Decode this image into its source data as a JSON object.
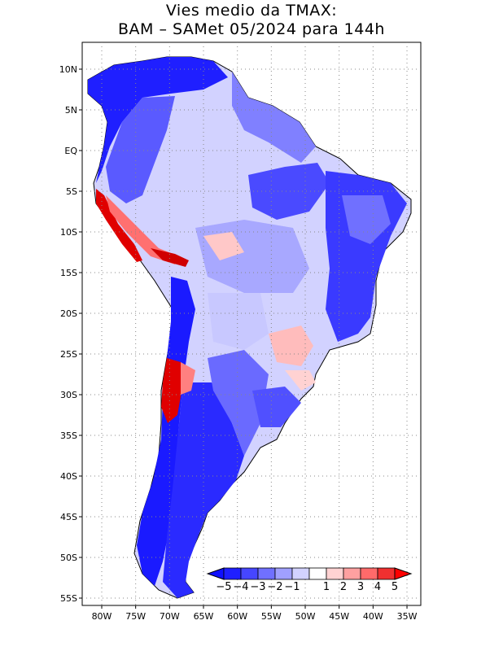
{
  "title": {
    "line1": "Vies medio da TMAX:",
    "line2": "BAM – SAMet 05/2024  para 144h"
  },
  "map": {
    "region": "South America",
    "lat_range": [
      -56,
      13
    ],
    "lon_range": [
      -84,
      -35
    ],
    "lat_ticks": [
      "10N",
      "5N",
      "EQ",
      "5S",
      "10S",
      "15S",
      "20S",
      "25S",
      "30S",
      "35S",
      "40S",
      "45S",
      "50S",
      "55S"
    ],
    "lon_ticks": [
      "80W",
      "75W",
      "70W",
      "65W",
      "60W",
      "55W",
      "50W",
      "45W",
      "40W",
      "35W"
    ],
    "grid": "dotted"
  },
  "colorbar": {
    "labels": [
      "−5",
      "−4",
      "−3",
      "−2",
      "−1",
      "1",
      "2",
      "3",
      "4",
      "5"
    ],
    "colors": [
      "#1f1fff",
      "#4646ff",
      "#7070ff",
      "#a0a0ff",
      "#d2d2ff",
      "#ffffff",
      "#ffd2d2",
      "#ffa0a0",
      "#ff6a6a",
      "#f03030",
      "#e00000"
    ],
    "ends": [
      "#1010ff",
      "#ff0000"
    ]
  },
  "colors": {
    "deep_blue": "#1a1aff",
    "mid_blue": "#5a5aff",
    "light_blue": "#a0a0ff",
    "pale_blue": "#d2d2ff",
    "pink": "#ffc8c8",
    "red": "#e00000",
    "outline": "#000000"
  }
}
